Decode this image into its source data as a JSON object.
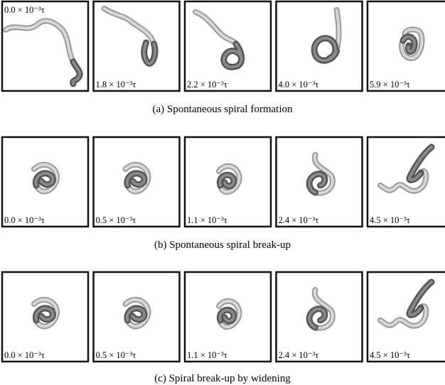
{
  "panels": [
    {
      "caption": "(a) Spontaneous spiral formation",
      "frames": [
        "0.0 × 10⁻³τ",
        "1.8 × 10⁻³τ",
        "2.2 × 10⁻³τ",
        "4.0 × 10⁻³τ",
        "5.9 × 10⁻³τ"
      ]
    },
    {
      "caption": "(b) Spontaneous spiral break-up",
      "frames": [
        "0.0 × 10⁻³τ",
        "0.5 × 10⁻³τ",
        "1.1 × 10⁻³τ",
        "2.4 × 10⁻³τ",
        "4.5 × 10⁻³τ"
      ]
    },
    {
      "caption": "(c) Spiral break-up by widening",
      "frames": [
        "0.0 × 10⁻³τ",
        "0.5 × 10⁻³τ",
        "1.1 × 10⁻³τ",
        "2.4 × 10⁻³τ",
        "4.5 × 10⁻³τ"
      ]
    }
  ]
}
